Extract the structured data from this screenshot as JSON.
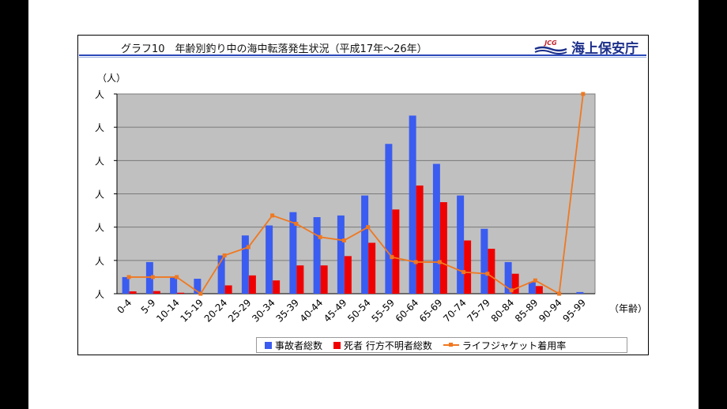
{
  "header": {
    "title": "グラフ10　年齢別釣り中の海中転落発生状況（平成17年～26年）",
    "logo_mark_text": "JCG",
    "logo_text": "海上保安庁"
  },
  "colors": {
    "plot_background": "#c0c0c0",
    "series_total": "#3a5cf0",
    "series_dead": "#f00000",
    "series_rate": "#f07820",
    "brand": "#1c2f8a"
  },
  "chart_data": {
    "type": "bar",
    "title": "",
    "xlabel": "（年齢）",
    "ylabel": "（人）",
    "y_tick_labels": [
      "人",
      "人",
      "人",
      "人",
      "人",
      "人",
      "人"
    ],
    "ylim": [
      0,
      60
    ],
    "y2lim": [
      0,
      60
    ],
    "grid": true,
    "legend_position": "bottom",
    "categories": [
      "0-4",
      "5-9",
      "10-14",
      "15-19",
      "20-24",
      "25-29",
      "30-34",
      "35-39",
      "40-44",
      "45-49",
      "50-54",
      "55-59",
      "60-64",
      "65-69",
      "70-74",
      "75-79",
      "80-84",
      "85-89",
      "90-94",
      "95-99"
    ],
    "series": [
      {
        "name": "事故者総数",
        "kind": "bar",
        "color": "#3a5cf0",
        "values": [
          5,
          9.5,
          5,
          4.5,
          11.5,
          17.5,
          20.5,
          24.5,
          23,
          23.5,
          29.5,
          45,
          53.5,
          39,
          29.5,
          19.5,
          9.5,
          3.5,
          0,
          0.5
        ]
      },
      {
        "name": "死者 行方不明者総数",
        "kind": "bar",
        "color": "#f00000",
        "values": [
          0.7,
          0.8,
          0.3,
          0,
          2.5,
          5.5,
          4,
          8.5,
          8.5,
          11.3,
          15.3,
          25.3,
          32.5,
          27.5,
          16,
          13.5,
          6,
          2.3,
          0,
          0
        ]
      },
      {
        "name": "ライフジャケット着用率",
        "kind": "line",
        "color": "#f07820",
        "values": [
          5,
          5,
          5,
          0,
          11.5,
          14,
          23.5,
          21,
          17,
          16,
          20,
          11,
          9.5,
          9.5,
          6.5,
          6,
          1,
          4,
          0,
          60
        ]
      }
    ]
  }
}
